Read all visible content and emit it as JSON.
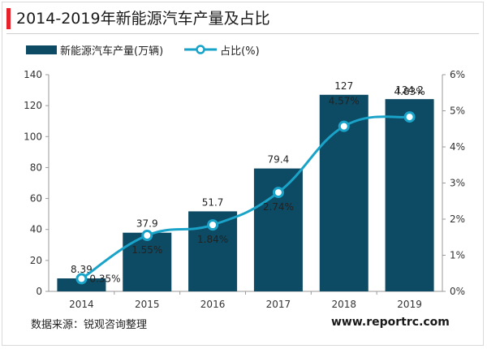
{
  "header": {
    "title": "2014-2019年新能源汽车产量及占比"
  },
  "footer": {
    "source": "数据来源：锐观咨询整理",
    "site": "www.reportrc.com"
  },
  "colors": {
    "bar": "#0d4a63",
    "line": "#1aa3c9",
    "accent": "#e8222b"
  },
  "chart_data": {
    "type": "bar",
    "title": "2014-2019年新能源汽车产量及占比",
    "categories": [
      "2014",
      "2015",
      "2016",
      "2017",
      "2018",
      "2019"
    ],
    "series": [
      {
        "name": "新能源汽车产量(万辆)",
        "type": "bar",
        "axis": "left",
        "values": [
          8.39,
          37.9,
          51.7,
          79.4,
          127,
          124.2
        ],
        "labels": [
          "8.39",
          "37.9",
          "51.7",
          "79.4",
          "127",
          "124.2"
        ]
      },
      {
        "name": "占比(%)",
        "type": "line",
        "axis": "right",
        "values": [
          0.35,
          1.55,
          1.84,
          2.74,
          4.57,
          4.83
        ],
        "labels": [
          "0.35%",
          "1.55%",
          "1.84%",
          "2.74%",
          "4.57%",
          "4.83%"
        ]
      }
    ],
    "y_left": {
      "ylim": [
        0,
        140
      ],
      "ticks": [
        0,
        20,
        40,
        60,
        80,
        100,
        120,
        140
      ]
    },
    "y_right": {
      "ylim": [
        0,
        6
      ],
      "ticks": [
        "0%",
        "1%",
        "2%",
        "3%",
        "4%",
        "5%",
        "6%"
      ]
    },
    "legend": "top-left",
    "grid": false
  }
}
